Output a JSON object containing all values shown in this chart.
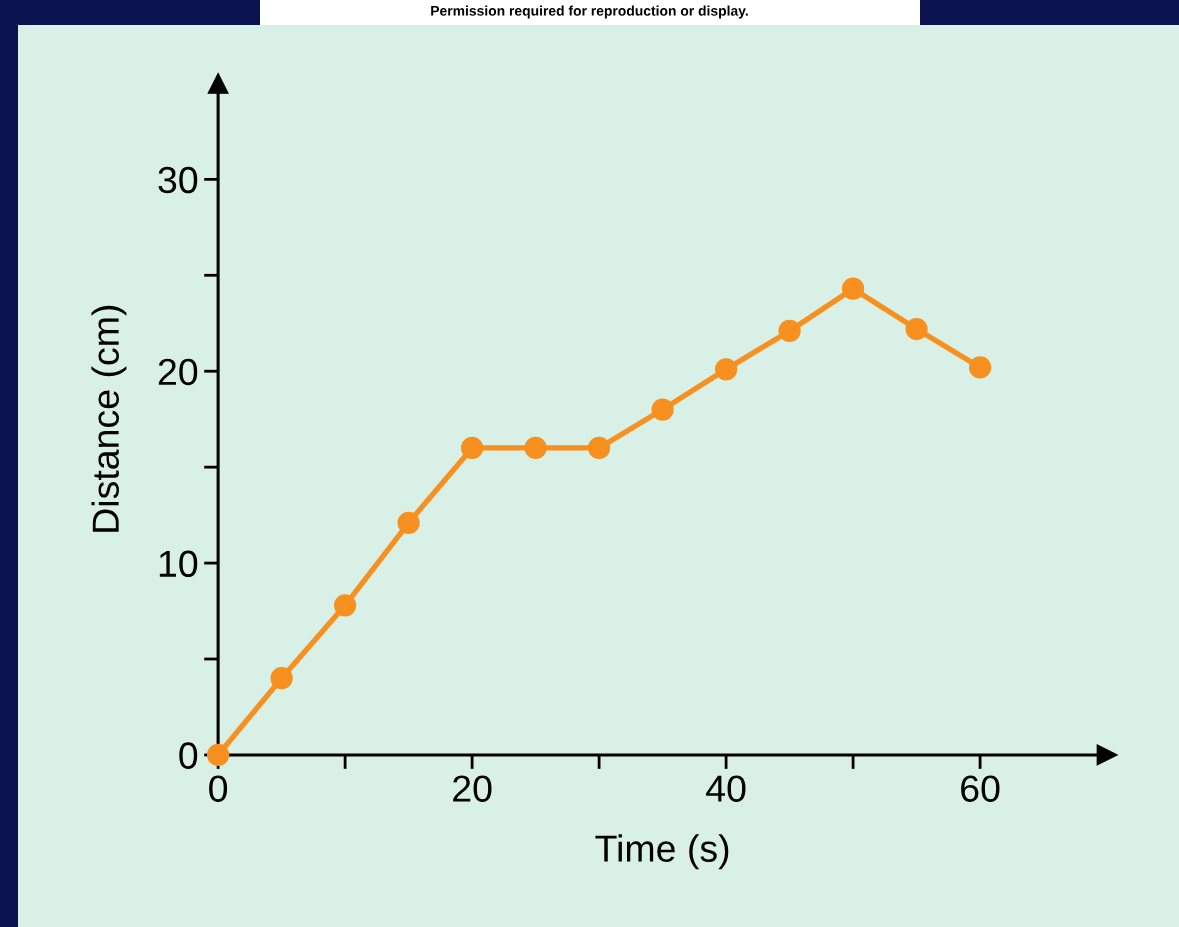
{
  "chart_data": {
    "type": "line",
    "xlabel": "Time (s)",
    "ylabel": "Distance (cm)",
    "annotations": [
      "Permission required for reproduction or display."
    ],
    "x": [
      0,
      5,
      10,
      15,
      20,
      25,
      30,
      35,
      40,
      45,
      50,
      55,
      60
    ],
    "series": [
      {
        "color": "#f7901e",
        "values": [
          0,
          4,
          7.8,
          12.1,
          16,
          16,
          16,
          18,
          20.1,
          22.1,
          24.3,
          22.2,
          20.2
        ]
      }
    ],
    "xlim": [
      0,
      70
    ],
    "ylim": [
      0,
      35
    ],
    "xticks": [
      0,
      {
        "value": 10,
        "label": null
      },
      20,
      {
        "value": 30,
        "label": null
      },
      40,
      {
        "value": 50,
        "label": null
      },
      60
    ],
    "yticks": [
      0,
      {
        "value": 5,
        "label": null
      },
      10,
      {
        "value": 15,
        "label": null
      },
      20,
      {
        "value": 25,
        "label": null
      },
      30
    ],
    "marker": "circle",
    "line_style": "solid",
    "grid": false,
    "legend": false
  }
}
